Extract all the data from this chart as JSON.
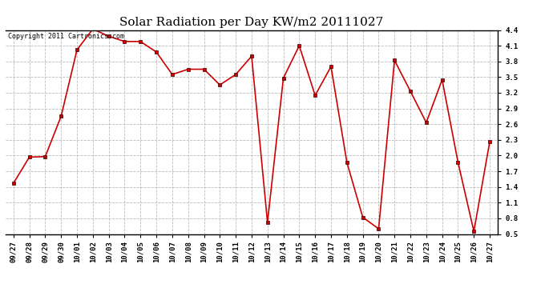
{
  "title": "Solar Radiation per Day KW/m2 20111027",
  "copyright_text": "Copyright 2011 Cartronics.com",
  "labels": [
    "09/27",
    "09/28",
    "09/29",
    "09/30",
    "10/01",
    "10/02",
    "10/03",
    "10/04",
    "10/05",
    "10/06",
    "10/07",
    "10/08",
    "10/09",
    "10/10",
    "10/11",
    "10/12",
    "10/13",
    "10/14",
    "10/15",
    "10/16",
    "10/17",
    "10/18",
    "10/19",
    "10/20",
    "10/21",
    "10/22",
    "10/23",
    "10/24",
    "10/25",
    "10/26",
    "10/27"
  ],
  "values": [
    1.47,
    1.97,
    1.98,
    2.75,
    4.02,
    4.42,
    4.28,
    4.18,
    4.18,
    3.98,
    3.55,
    3.65,
    3.65,
    3.35,
    3.55,
    3.9,
    0.72,
    3.48,
    4.1,
    3.15,
    3.7,
    1.87,
    0.82,
    0.6,
    3.82,
    3.23,
    2.63,
    3.45,
    1.87,
    0.55,
    2.27
  ],
  "ylim": [
    0.5,
    4.4
  ],
  "yticks": [
    0.5,
    0.8,
    1.1,
    1.4,
    1.7,
    2.0,
    2.3,
    2.6,
    2.9,
    3.2,
    3.5,
    3.8,
    4.1,
    4.4
  ],
  "line_color": "#cc0000",
  "marker_color": "#cc0000",
  "bg_color": "#ffffff",
  "plot_bg_color": "#ffffff",
  "grid_color": "#bbbbbb",
  "title_fontsize": 11,
  "tick_label_fontsize": 6.5,
  "copyright_fontsize": 6.0
}
